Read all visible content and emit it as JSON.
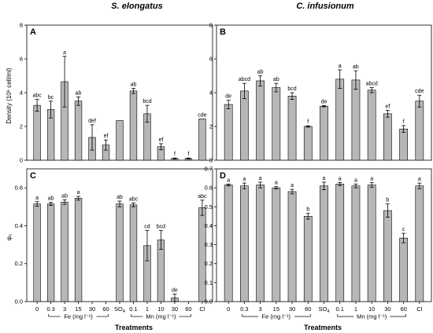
{
  "figure": {
    "col_titles": [
      "S. elongatus",
      "C. infusionum"
    ],
    "xlabel": "Treatments",
    "fe_group_label": "Fe (mg l⁻¹)",
    "mn_group_label": "Mn (mg l⁻¹)"
  },
  "chart_data": [
    {
      "type": "bar",
      "panel": "A",
      "title": "S. elongatus",
      "ylabel": "Density (10⁶ cell/ml)",
      "xlabel": "",
      "ylim": [
        0,
        8
      ],
      "yticks": [
        "0",
        "2",
        "4",
        "6",
        "8"
      ],
      "categories": [
        "0",
        "0.3",
        "3",
        "15",
        "30",
        "60",
        "SO4",
        "0.1",
        "1",
        "10",
        "30",
        "60",
        "Cl"
      ],
      "values": [
        3.25,
        3.0,
        4.65,
        3.5,
        1.35,
        0.9,
        2.35,
        4.1,
        2.75,
        0.8,
        0.1,
        0.1,
        2.45
      ],
      "errors": [
        0.35,
        0.5,
        1.5,
        0.25,
        0.75,
        0.3,
        0,
        0.15,
        0.5,
        0.18,
        0.03,
        0.03,
        0
      ],
      "letters": [
        "abc",
        "bc",
        "a",
        "ab",
        "def",
        "ef",
        "",
        "ab",
        "bcd",
        "ef",
        "f",
        "f",
        "cde"
      ]
    },
    {
      "type": "bar",
      "panel": "B",
      "title": "C. infusionum",
      "ylabel": "",
      "xlabel": "",
      "ylim": [
        0,
        8
      ],
      "yticks": [
        "0",
        "2",
        "4",
        "6",
        "8"
      ],
      "categories": [
        "0",
        "0.3",
        "3",
        "15",
        "30",
        "60",
        "SO4",
        "0.1",
        "1",
        "10",
        "30",
        "60",
        "Cl"
      ],
      "values": [
        3.3,
        4.1,
        4.7,
        4.3,
        3.8,
        2.0,
        3.2,
        4.8,
        4.75,
        4.15,
        2.75,
        1.85,
        3.5
      ],
      "errors": [
        0.25,
        0.45,
        0.3,
        0.25,
        0.2,
        0.04,
        0.04,
        0.55,
        0.55,
        0.15,
        0.2,
        0.2,
        0.35
      ],
      "letters": [
        "de",
        "abcd",
        "ab",
        "ab",
        "bcd",
        "f",
        "de",
        "a",
        "ab",
        "abcd",
        "ef",
        "f",
        "cde"
      ]
    },
    {
      "type": "bar",
      "panel": "C",
      "title": "",
      "ylabel": "φ₀",
      "xlabel": "Treatments",
      "ylim": [
        0,
        0.7
      ],
      "yticks": [
        "0.0",
        "0.2",
        "0.4",
        "0.6"
      ],
      "categories": [
        "0",
        "0.3",
        "3",
        "15",
        "30",
        "60",
        "SO4",
        "0.1",
        "1",
        "10",
        "30",
        "60",
        "Cl"
      ],
      "values": [
        0.515,
        0.515,
        0.525,
        0.545,
        null,
        null,
        0.515,
        0.51,
        0.295,
        0.325,
        0.02,
        null,
        0.495
      ],
      "errors": [
        0.012,
        0.008,
        0.012,
        0.01,
        null,
        null,
        0.015,
        0.01,
        0.08,
        0.05,
        0.02,
        null,
        0.04
      ],
      "letters": [
        "a",
        "ab",
        "ab",
        "a",
        "",
        "",
        "ab",
        "abc",
        "cd",
        "bcd",
        "de",
        "",
        "abc"
      ]
    },
    {
      "type": "bar",
      "panel": "D",
      "title": "",
      "ylabel": "",
      "xlabel": "Treatments",
      "ylim": [
        0,
        0.7
      ],
      "yticks": [
        "0.0",
        "0.1",
        "0.2",
        "0.3",
        "0.4",
        "0.5",
        "0.6",
        "0.7"
      ],
      "categories": [
        "0",
        "0.3",
        "3",
        "15",
        "30",
        "60",
        "SO4",
        "0.1",
        "1",
        "10",
        "30",
        "60",
        "Cl"
      ],
      "values": [
        0.615,
        0.61,
        0.615,
        0.6,
        0.58,
        0.45,
        0.61,
        0.62,
        0.61,
        0.615,
        0.48,
        0.335,
        0.61
      ],
      "errors": [
        0.005,
        0.015,
        0.015,
        0.006,
        0.012,
        0.015,
        0.02,
        0.008,
        0.01,
        0.012,
        0.035,
        0.025,
        0.015
      ],
      "letters": [
        "a",
        "a",
        "a",
        "a",
        "a",
        "b",
        "a",
        "a",
        "a",
        "a",
        "b",
        "c",
        "a"
      ]
    }
  ]
}
